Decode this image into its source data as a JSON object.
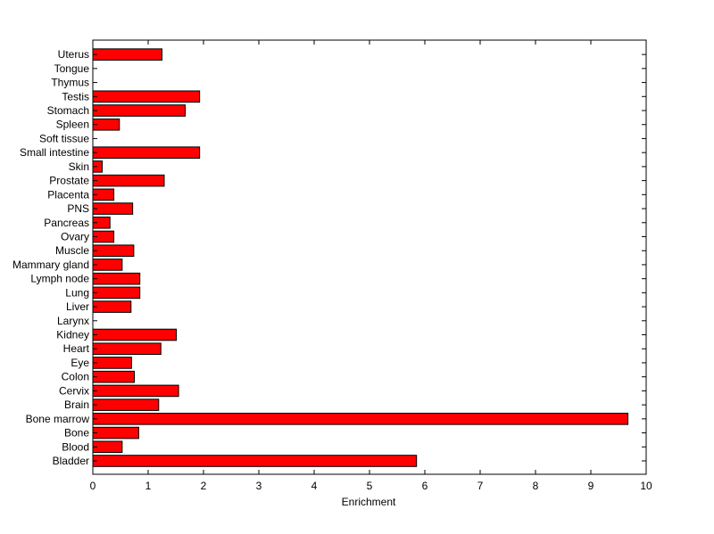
{
  "chart_data": {
    "type": "bar",
    "orientation": "horizontal",
    "title": "",
    "xlabel": "Enrichment",
    "ylabel": "",
    "xlim": [
      0,
      10
    ],
    "xticks": [
      "0",
      "1",
      "2",
      "3",
      "4",
      "5",
      "6",
      "7",
      "8",
      "9",
      "10"
    ],
    "grid": false,
    "bar_color": "#ff0000",
    "edge_color": "#000000",
    "categories": [
      "Bladder",
      "Blood",
      "Bone",
      "Bone marrow",
      "Brain",
      "Cervix",
      "Colon",
      "Eye",
      "Heart",
      "Kidney",
      "Larynx",
      "Liver",
      "Lung",
      "Lymph node",
      "Mammary gland",
      "Muscle",
      "Ovary",
      "Pancreas",
      "PNS",
      "Placenta",
      "Prostate",
      "Skin",
      "Small intestine",
      "Soft tissue",
      "Spleen",
      "Stomach",
      "Testis",
      "Thymus",
      "Tongue",
      "Uterus"
    ],
    "values": [
      5.85,
      0.53,
      0.83,
      9.67,
      1.19,
      1.55,
      0.75,
      0.7,
      1.23,
      1.51,
      0,
      0.69,
      0.85,
      0.85,
      0.53,
      0.74,
      0.38,
      0.31,
      0.72,
      0.38,
      1.29,
      0.17,
      1.93,
      0,
      0.48,
      1.67,
      1.93,
      0,
      0,
      1.25
    ]
  }
}
